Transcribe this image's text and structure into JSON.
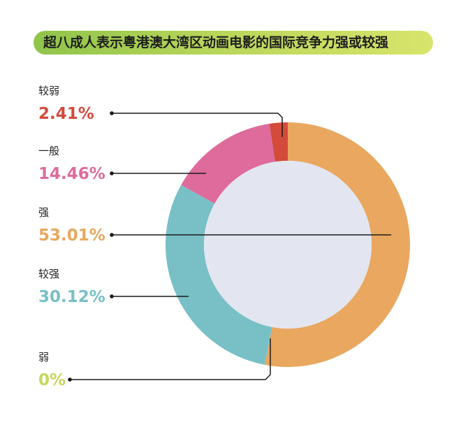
{
  "chart_data": {
    "type": "pie",
    "title": "超八成人表示粤港澳大湾区动画电影的国际竞争力强或较强",
    "slices": [
      {
        "label": "较弱",
        "value": 2.41,
        "value_label": "2.41%",
        "color": "#d44b3c"
      },
      {
        "label": "一般",
        "value": 14.46,
        "value_label": "14.46%",
        "color": "#de6b9c"
      },
      {
        "label": "强",
        "value": 53.01,
        "value_label": "53.01%",
        "color": "#e9a75f"
      },
      {
        "label": "较强",
        "value": 30.12,
        "value_label": "30.12%",
        "color": "#78c0c5"
      },
      {
        "label": "弱",
        "value": 0,
        "value_label": "0%",
        "color": "#c5d85c"
      }
    ],
    "inner_color": "#e3e6f1",
    "slice_order_clockwise_from_top": [
      "强",
      "较强",
      "弱",
      "一般",
      "较弱"
    ]
  }
}
